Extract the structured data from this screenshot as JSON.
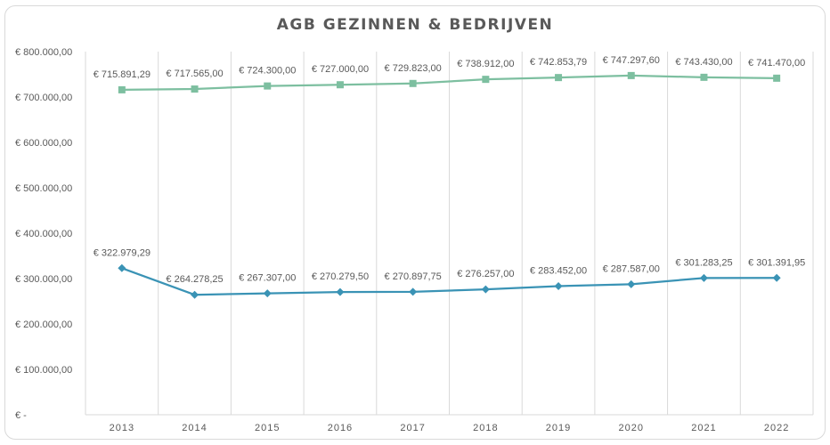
{
  "chart_data": {
    "type": "line",
    "title": "AGB GEZINNEN & BEDRIJVEN",
    "xlabel": "",
    "ylabel": "",
    "categories": [
      "2013",
      "2014",
      "2015",
      "2016",
      "2017",
      "2018",
      "2019",
      "2020",
      "2021",
      "2022"
    ],
    "ylim": [
      0,
      800000
    ],
    "ytick_values": [
      0,
      100000,
      200000,
      300000,
      400000,
      500000,
      600000,
      700000,
      800000
    ],
    "ytick_labels": [
      "€ -",
      "€ 100.000,00",
      "€ 200.000,00",
      "€ 300.000,00",
      "€ 400.000,00",
      "€ 500.000,00",
      "€ 600.000,00",
      "€ 700.000,00",
      "€ 800.000,00"
    ],
    "grid": "vertical",
    "legend": "none",
    "series": [
      {
        "color": "#7dbfa0",
        "marker": "square",
        "values": [
          715891.29,
          717565.0,
          724300.0,
          727000.0,
          729823.0,
          738912.0,
          742853.79,
          747297.6,
          743430.0,
          741470.0
        ],
        "labels": [
          "€ 715.891,29",
          "€ 717.565,00",
          "€ 724.300,00",
          "€ 727.000,00",
          "€ 729.823,00",
          "€ 738.912,00",
          "€ 742.853,79",
          "€ 747.297,60",
          "€ 743.430,00",
          "€ 741.470,00"
        ]
      },
      {
        "color": "#3a93b5",
        "marker": "diamond",
        "values": [
          322979.29,
          264278.25,
          267307.0,
          270279.5,
          270897.75,
          276257.0,
          283452.0,
          287587.0,
          301283.25,
          301391.95
        ],
        "labels": [
          "€ 322.979,29",
          "€ 264.278,25",
          "€ 267.307,00",
          "€ 270.279,50",
          "€ 270.897,75",
          "€ 276.257,00",
          "€ 283.452,00",
          "€ 287.587,00",
          "€ 301.283,25",
          "€ 301.391,95"
        ]
      }
    ]
  }
}
